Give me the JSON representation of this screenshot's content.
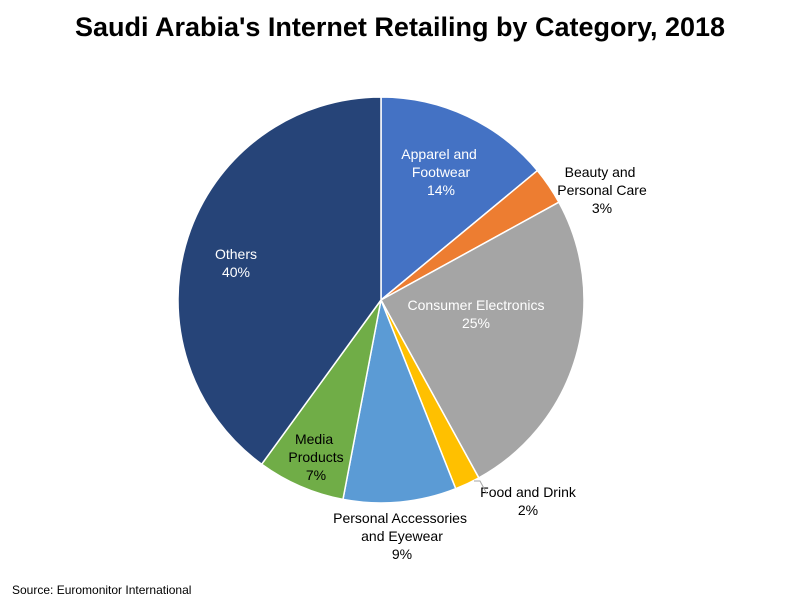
{
  "chart_data": {
    "type": "pie",
    "title": "Saudi Arabia's Internet Retailing by Category, 2018",
    "categories": [
      "Apparel and Footwear",
      "Beauty and Personal Care",
      "Consumer Electronics",
      "Food and Drink",
      "Personal Accessories and Eyewear",
      "Media Products",
      "Others"
    ],
    "values": [
      14,
      3,
      25,
      2,
      9,
      7,
      40
    ],
    "value_labels": [
      "14%",
      "3%",
      "25%",
      "2%",
      "9%",
      "7%",
      "40%"
    ],
    "colors": [
      "#4472c4",
      "#ed7d31",
      "#a5a5a5",
      "#ffc000",
      "#5b9bd5",
      "#70ad47",
      "#264478"
    ],
    "source": "Source: Euromonitor International"
  }
}
